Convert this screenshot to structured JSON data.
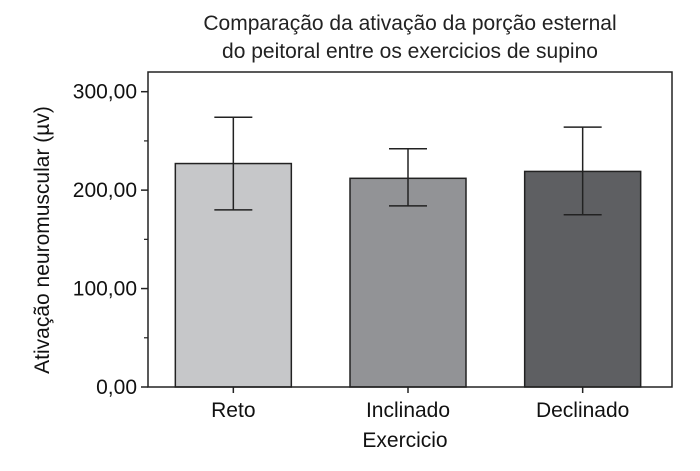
{
  "chart_data": {
    "type": "bar",
    "title": [
      "Comparação da ativação da porção esternal",
      "do peitoral entre os exercicios de supino"
    ],
    "xlabel": "Exercicio",
    "ylabel": "Ativação neuromuscular (µv)",
    "categories": [
      "Reto",
      "Inclinado",
      "Declinado"
    ],
    "values": [
      227,
      212,
      219
    ],
    "error_low": [
      180,
      184,
      175
    ],
    "error_high": [
      274,
      242,
      264
    ],
    "colors": [
      "#c6c7c9",
      "#929396",
      "#5e5f62"
    ],
    "ylim": [
      0,
      320
    ],
    "yticks": [
      0,
      100,
      200,
      300
    ],
    "ytick_labels": [
      "0,00",
      "100,00",
      "200,00",
      "300,00"
    ],
    "y_minor_ticks": [
      50,
      150,
      250
    ],
    "grid": false,
    "legend": "none"
  }
}
